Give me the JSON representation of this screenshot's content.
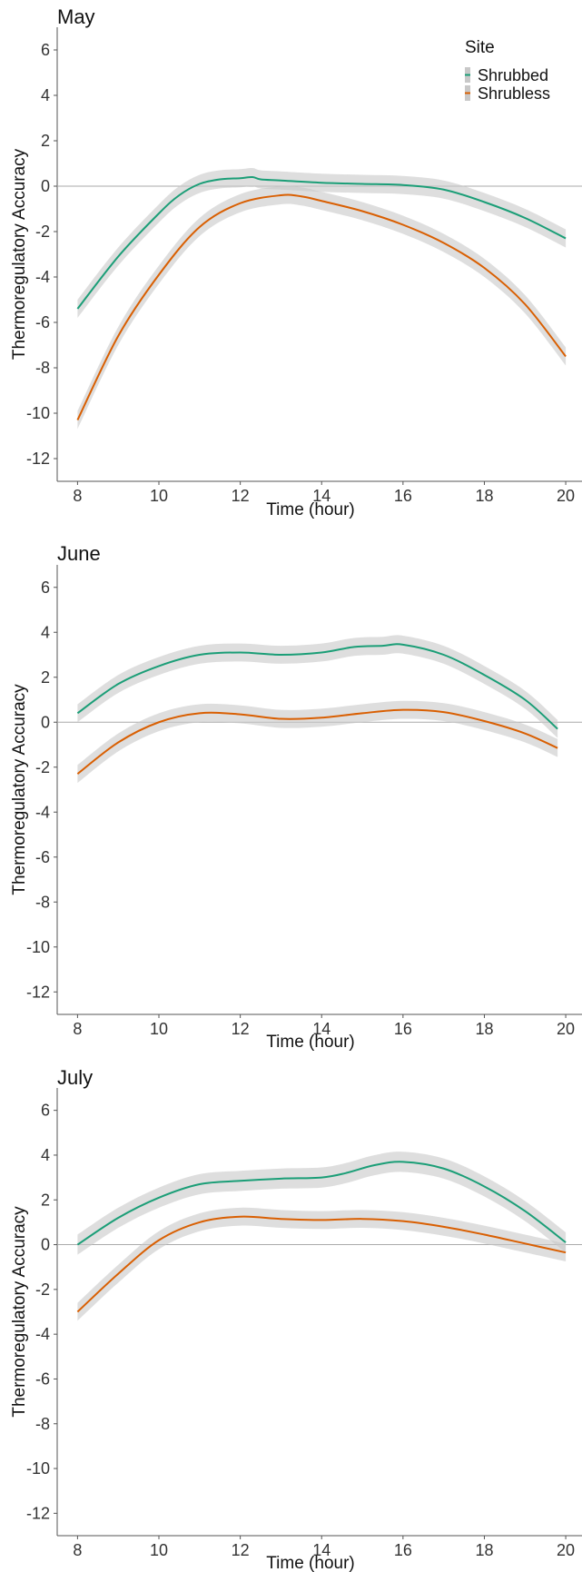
{
  "chart_data": [
    {
      "type": "line",
      "title": "May",
      "xlabel": "Time (hour)",
      "ylabel": "Thermoregulatory Accuracy",
      "xlim": [
        7.5,
        20.4
      ],
      "ylim": [
        -13,
        7
      ],
      "xticks": [
        8,
        10,
        12,
        14,
        16,
        18,
        20
      ],
      "yticks": [
        6,
        4,
        2,
        0,
        -2,
        -4,
        -6,
        -8,
        -10,
        -12
      ],
      "reference_line": 0,
      "legend": {
        "title": "Site",
        "position": "top-right",
        "entries": [
          "Shrubbed",
          "Shrubless"
        ]
      },
      "series": [
        {
          "name": "Shrubbed",
          "color": "#1b9e77",
          "x": [
            8,
            9,
            10,
            10.5,
            11,
            11.5,
            12,
            12.3,
            12.5,
            13,
            14,
            15,
            16,
            17,
            18,
            19,
            20
          ],
          "y": [
            -5.4,
            -3.1,
            -1.2,
            -0.4,
            0.1,
            0.3,
            0.35,
            0.4,
            0.3,
            0.25,
            0.15,
            0.1,
            0.05,
            -0.15,
            -0.7,
            -1.4,
            -2.3
          ],
          "ci_halfwidth": 0.4
        },
        {
          "name": "Shrubless",
          "color": "#d95f02",
          "x": [
            8,
            9,
            10,
            11,
            12,
            13,
            13.5,
            14,
            15,
            16,
            17,
            18,
            19,
            20
          ],
          "y": [
            -10.3,
            -6.6,
            -3.9,
            -1.8,
            -0.75,
            -0.4,
            -0.45,
            -0.65,
            -1.1,
            -1.7,
            -2.5,
            -3.6,
            -5.2,
            -7.5
          ],
          "ci_halfwidth": 0.4
        }
      ]
    },
    {
      "type": "line",
      "title": "June",
      "xlabel": "Time (hour)",
      "ylabel": "Thermoregulatory Accuracy",
      "xlim": [
        7.5,
        20.4
      ],
      "ylim": [
        -13,
        7
      ],
      "xticks": [
        8,
        10,
        12,
        14,
        16,
        18,
        20
      ],
      "yticks": [
        6,
        4,
        2,
        0,
        -2,
        -4,
        -6,
        -8,
        -10,
        -12
      ],
      "reference_line": 0,
      "series": [
        {
          "name": "Shrubbed",
          "color": "#1b9e77",
          "x": [
            8,
            9,
            10,
            11,
            12,
            13,
            14,
            14.8,
            15.5,
            16,
            17,
            18,
            19,
            19.8
          ],
          "y": [
            0.4,
            1.7,
            2.5,
            3.0,
            3.1,
            3.0,
            3.1,
            3.35,
            3.4,
            3.45,
            3.0,
            2.1,
            1.0,
            -0.3
          ],
          "ci_halfwidth": 0.4
        },
        {
          "name": "Shrubless",
          "color": "#d95f02",
          "x": [
            8,
            9,
            10,
            11,
            12,
            13,
            14,
            15,
            16,
            17,
            18,
            19,
            19.8
          ],
          "y": [
            -2.3,
            -0.9,
            0.0,
            0.4,
            0.35,
            0.15,
            0.2,
            0.4,
            0.55,
            0.45,
            0.05,
            -0.5,
            -1.15
          ],
          "ci_halfwidth": 0.4
        }
      ]
    },
    {
      "type": "line",
      "title": "July",
      "xlabel": "Time (hour)",
      "ylabel": "Thermoregulatory Accuracy",
      "xlim": [
        7.5,
        20.4
      ],
      "ylim": [
        -13,
        7
      ],
      "xticks": [
        8,
        10,
        12,
        14,
        16,
        18,
        20
      ],
      "yticks": [
        6,
        4,
        2,
        0,
        -2,
        -4,
        -6,
        -8,
        -10,
        -12
      ],
      "reference_line": 0,
      "series": [
        {
          "name": "Shrubbed",
          "color": "#1b9e77",
          "x": [
            8,
            9,
            10,
            11,
            12,
            13,
            14,
            14.6,
            15.3,
            16,
            17,
            18,
            19,
            20
          ],
          "y": [
            0.0,
            1.2,
            2.1,
            2.7,
            2.85,
            2.95,
            3.0,
            3.2,
            3.55,
            3.7,
            3.4,
            2.6,
            1.5,
            0.1
          ],
          "ci_halfwidth": 0.45
        },
        {
          "name": "Shrubless",
          "color": "#d95f02",
          "x": [
            8,
            9,
            10,
            11,
            12,
            13,
            14,
            15,
            16,
            17,
            18,
            19,
            20
          ],
          "y": [
            -3.0,
            -1.3,
            0.2,
            1.0,
            1.25,
            1.15,
            1.1,
            1.15,
            1.05,
            0.8,
            0.45,
            0.05,
            -0.35
          ],
          "ci_halfwidth": 0.4
        }
      ]
    }
  ]
}
